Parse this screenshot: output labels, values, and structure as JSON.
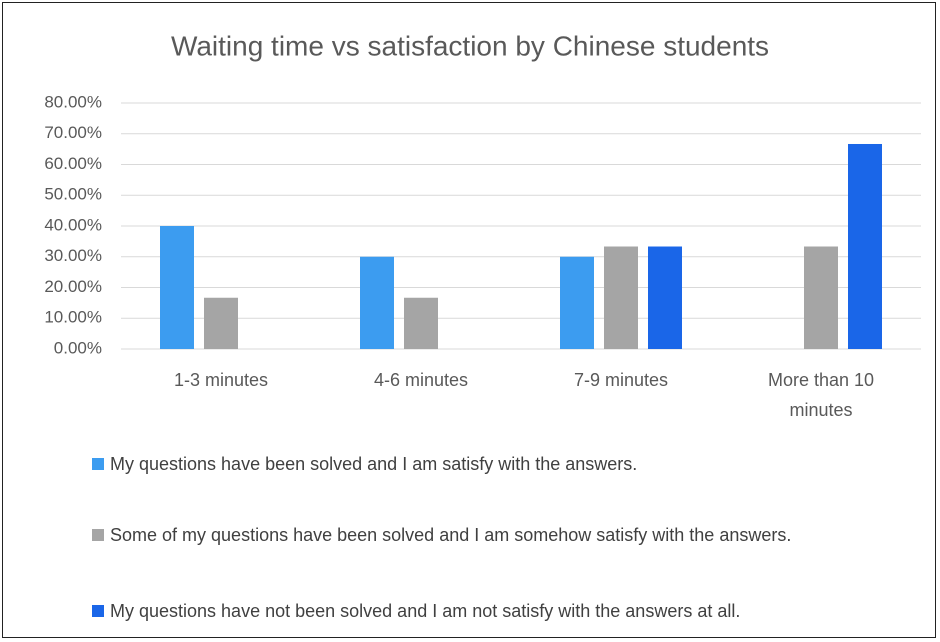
{
  "chart_data": {
    "type": "bar",
    "title": "Waiting time vs satisfaction by Chinese students",
    "categories": [
      "1-3 minutes",
      "4-6 minutes",
      "7-9 minutes",
      "More than 10 minutes"
    ],
    "series": [
      {
        "name": "My questions have been solved and I am satisfy with the answers.",
        "color": "#3c9cf0",
        "values": [
          40,
          30,
          30,
          0
        ]
      },
      {
        "name": "Some of my questions have been solved and I am somehow satisfy with the answers.",
        "color": "#a5a5a5",
        "values": [
          16.67,
          16.67,
          33.33,
          33.33
        ]
      },
      {
        "name": "My questions have not been solved and I am not satisfy with the answers at all.",
        "color": "#1a66e8",
        "values": [
          0,
          0,
          33.33,
          66.67
        ]
      }
    ],
    "ylim": [
      0,
      80
    ],
    "yticks": [
      {
        "value": 0,
        "label": "0.00%"
      },
      {
        "value": 10,
        "label": "10.00%"
      },
      {
        "value": 20,
        "label": "20.00%"
      },
      {
        "value": 30,
        "label": "30.00%"
      },
      {
        "value": 40,
        "label": "40.00%"
      },
      {
        "value": 50,
        "label": "50.00%"
      },
      {
        "value": 60,
        "label": "60.00%"
      },
      {
        "value": 70,
        "label": "70.00%"
      },
      {
        "value": 80,
        "label": "80.00%"
      }
    ],
    "grid": true,
    "legend": "bottom"
  }
}
